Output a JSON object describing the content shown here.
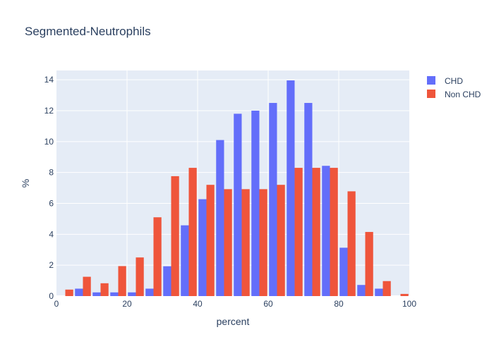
{
  "chart_data": {
    "type": "bar",
    "title": "Segmented-Neutrophils",
    "xlabel": "percent",
    "ylabel": "%",
    "xlim": [
      0,
      100
    ],
    "ylim": [
      0,
      14.6
    ],
    "x_ticks": [
      0,
      20,
      40,
      60,
      80,
      100
    ],
    "y_ticks": [
      0,
      2,
      4,
      6,
      8,
      10,
      12,
      14
    ],
    "bin_width": 5,
    "bin_starts": [
      0,
      5,
      10,
      15,
      20,
      25,
      30,
      35,
      40,
      45,
      50,
      55,
      60,
      65,
      70,
      75,
      80,
      85,
      90,
      95
    ],
    "grid": true,
    "legend_position": "top-right",
    "background": "#e5ecf6",
    "series": [
      {
        "name": "CHD",
        "color": "#636efa",
        "values": [
          0,
          0.48,
          0.24,
          0.24,
          0.24,
          0.48,
          1.93,
          4.58,
          6.27,
          10.1,
          11.8,
          12.0,
          12.5,
          13.96,
          12.5,
          8.43,
          3.13,
          0.72,
          0.48,
          0
        ]
      },
      {
        "name": "Non CHD",
        "color": "#ef553b",
        "values": [
          0.42,
          1.25,
          0.83,
          1.94,
          2.5,
          5.1,
          7.76,
          8.3,
          7.2,
          6.92,
          6.92,
          6.92,
          7.2,
          8.3,
          8.3,
          8.3,
          6.78,
          4.15,
          0.97,
          0.14
        ]
      }
    ]
  }
}
